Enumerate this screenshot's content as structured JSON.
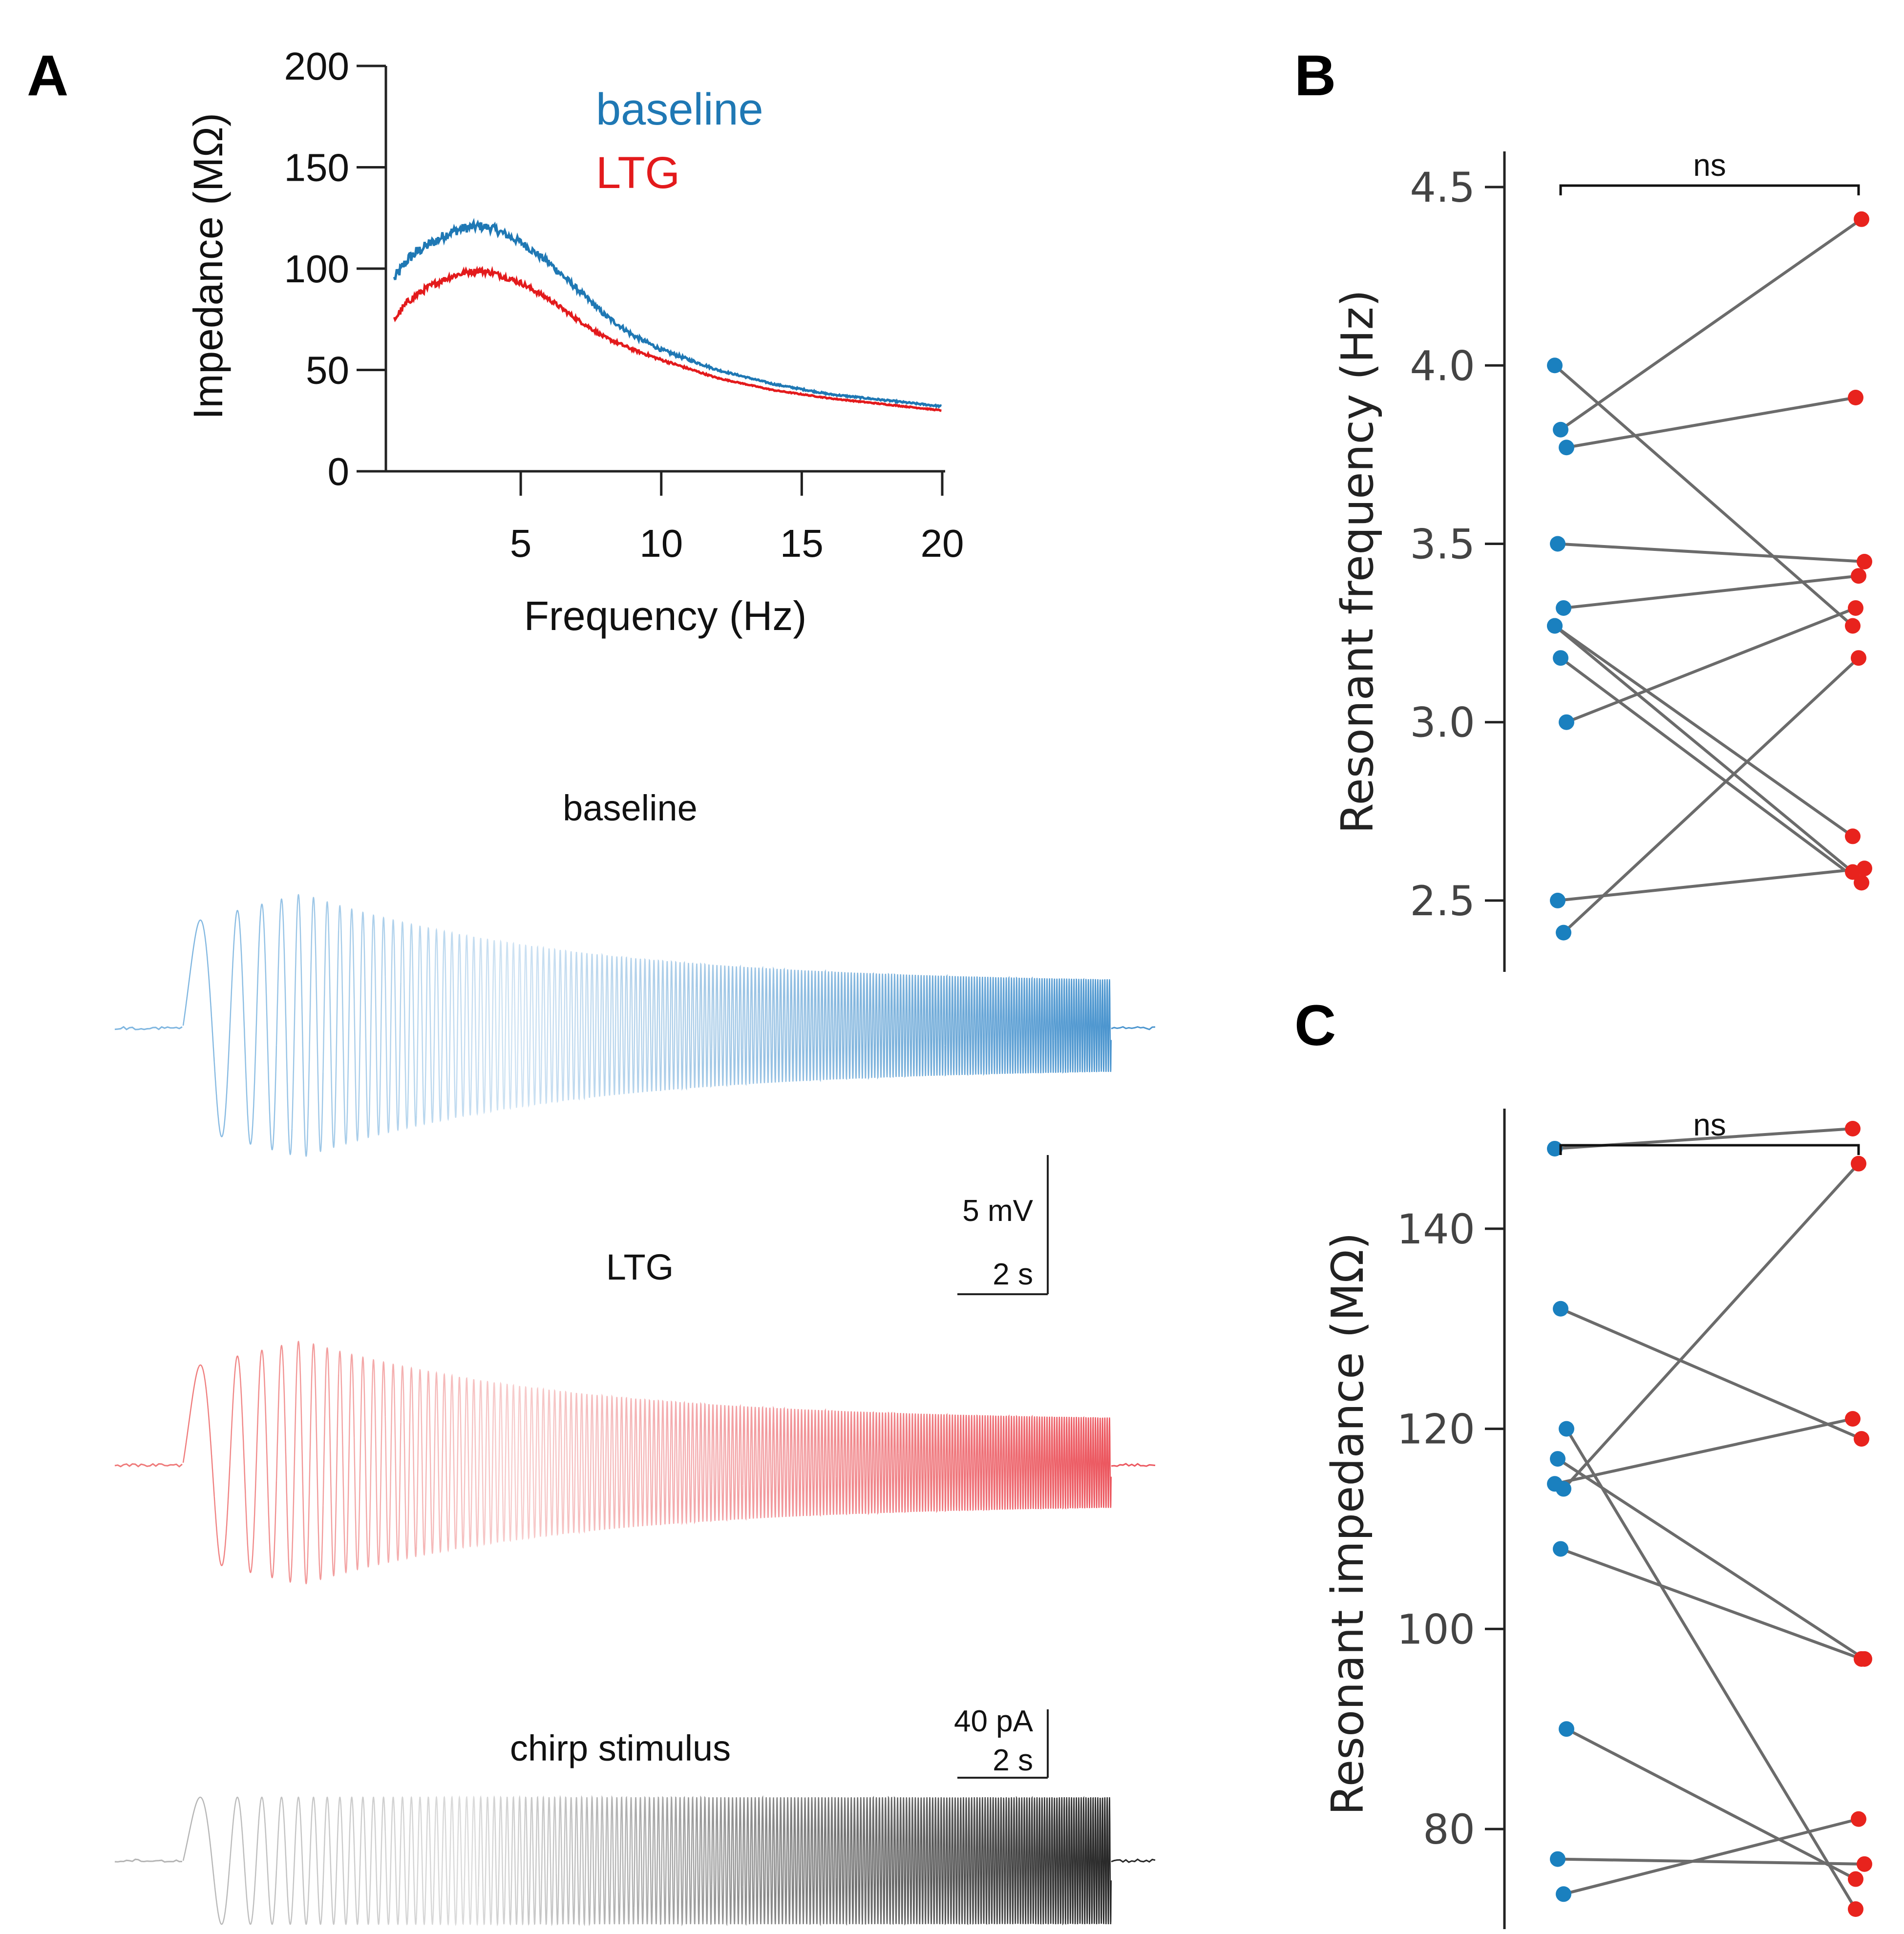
{
  "colors": {
    "baseline": "#1f78b4",
    "ltg": "#e31a1c",
    "baseline_dot": "#1a80bf",
    "ltg_dot": "#e8231d",
    "pair_line": "#6b6b6b",
    "chirp": "#555555"
  },
  "panels": {
    "A": "A",
    "B": "B",
    "C": "C"
  },
  "chart_data": [
    {
      "id": "A-top",
      "type": "line",
      "title": "",
      "xlabel": "Frequency (Hz)",
      "ylabel": "Impedance (MΩ)",
      "xlim": [
        0.5,
        20
      ],
      "ylim": [
        0,
        200
      ],
      "xticks": [
        5,
        10,
        15,
        20
      ],
      "yticks": [
        0,
        50,
        100,
        150,
        200
      ],
      "legend": [
        "baseline",
        "LTG"
      ],
      "legend_position": "top-right",
      "series": [
        {
          "name": "baseline",
          "x": [
            0.5,
            1,
            1.5,
            2,
            2.5,
            3,
            3.5,
            4,
            5,
            6,
            7,
            8,
            9,
            10,
            12,
            14,
            16,
            18,
            20
          ],
          "values": [
            95,
            105,
            110,
            114,
            118,
            120,
            121,
            120,
            113,
            103,
            90,
            77,
            67,
            60,
            50,
            43,
            38,
            35,
            32
          ]
        },
        {
          "name": "LTG",
          "x": [
            0.5,
            1,
            1.5,
            2,
            2.5,
            3,
            3.5,
            4,
            5,
            6,
            7,
            8,
            9,
            10,
            12,
            14,
            16,
            18,
            20
          ],
          "values": [
            75,
            84,
            89,
            93,
            96,
            98,
            99,
            98,
            93,
            85,
            75,
            66,
            60,
            55,
            46,
            40,
            36,
            33,
            30
          ]
        }
      ]
    },
    {
      "id": "A-traces",
      "type": "line",
      "traces": [
        {
          "name": "baseline",
          "title": "baseline"
        },
        {
          "name": "LTG",
          "title": "LTG"
        },
        {
          "name": "chirp",
          "title": "chirp stimulus"
        }
      ],
      "scalebar_voltage": {
        "y_label": "5 mV",
        "x_label": "2 s"
      },
      "scalebar_current": {
        "y_label": "40 pA",
        "x_label": "2 s"
      }
    },
    {
      "id": "B",
      "type": "scatter",
      "ylabel": "Resonant frequency (Hz)",
      "ylim": [
        2.3,
        4.6
      ],
      "yticks": [
        "2.5",
        "3.0",
        "3.5",
        "4.0",
        "4.5"
      ],
      "significance": "ns",
      "pairs": [
        [
          4.0,
          3.27
        ],
        [
          3.82,
          4.41
        ],
        [
          3.77,
          3.91
        ],
        [
          3.5,
          3.45
        ],
        [
          3.32,
          3.41
        ],
        [
          3.27,
          2.58
        ],
        [
          3.18,
          2.55
        ],
        [
          3.0,
          3.32
        ],
        [
          2.5,
          2.59
        ],
        [
          2.41,
          3.18
        ],
        [
          3.27,
          2.68
        ]
      ]
    },
    {
      "id": "C",
      "type": "scatter",
      "ylabel": "Resonant impedance (MΩ)",
      "ylim": [
        70,
        152
      ],
      "yticks": [
        "80",
        "100",
        "120",
        "140"
      ],
      "significance": "ns",
      "pairs": [
        [
          148,
          150
        ],
        [
          132,
          119
        ],
        [
          120,
          72
        ],
        [
          117,
          97
        ],
        [
          114,
          146.5
        ],
        [
          114.5,
          121
        ],
        [
          108,
          97
        ],
        [
          90,
          75
        ],
        [
          77,
          76.5
        ],
        [
          73.5,
          81
        ]
      ]
    }
  ]
}
